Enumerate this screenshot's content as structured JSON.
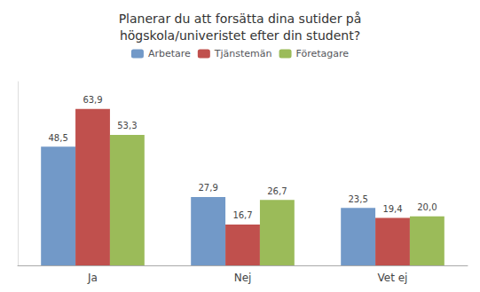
{
  "chart_data": {
    "type": "bar",
    "title": "Planerar du att forsätta dina sutider på\nhögskola/univeristet efter din student?",
    "categories": [
      "Ja",
      "Nej",
      "Vet ej"
    ],
    "series": [
      {
        "name": "Arbetare",
        "color": "#7299c8",
        "values": [
          48.5,
          27.9,
          23.5
        ],
        "value_labels": [
          "48,5",
          "27,9",
          "23,5"
        ]
      },
      {
        "name": "Tjänstemän",
        "color": "#c0504d",
        "values": [
          63.9,
          16.7,
          19.4
        ],
        "value_labels": [
          "63,9",
          "16,7",
          "19,4"
        ]
      },
      {
        "name": "Företagare",
        "color": "#9bbb59",
        "values": [
          53.3,
          26.7,
          20.0
        ],
        "value_labels": [
          "53,3",
          "26,7",
          "20,0"
        ]
      }
    ],
    "ylim": [
      0,
      75
    ],
    "grid": false,
    "legend": "top",
    "data_labels": true,
    "tick_labels": "x"
  }
}
